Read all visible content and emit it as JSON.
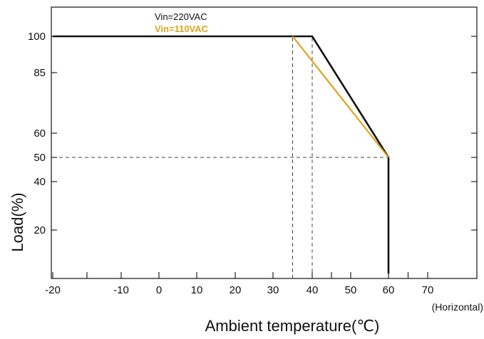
{
  "chart_data": {
    "type": "line",
    "title": "",
    "xlabel": "Ambient temperature(℃)",
    "ylabel": "Load(%)",
    "x_note": "(Horizontal)",
    "xlim": [
      -20,
      80
    ],
    "ylim": [
      0,
      110
    ],
    "x_ticks": [
      -20,
      -10,
      0,
      10,
      20,
      30,
      40,
      50,
      60,
      70
    ],
    "y_ticks": [
      20,
      40,
      50,
      60,
      85,
      100
    ],
    "grid": false,
    "series": [
      {
        "name": "Vin=220VAC",
        "color": "#111111",
        "points": [
          [
            -20,
            100
          ],
          [
            40,
            100
          ],
          [
            60,
            50
          ],
          [
            60,
            2
          ]
        ]
      },
      {
        "name": "Vin=110VAC",
        "color": "#e0a21a",
        "points": [
          [
            35,
            100
          ],
          [
            60,
            50
          ]
        ]
      }
    ],
    "reference_lines": [
      {
        "type": "vertical",
        "x": 35,
        "y_range": [
          0,
          100
        ],
        "style": "dashed"
      },
      {
        "type": "vertical",
        "x": 40,
        "y_range": [
          0,
          100
        ],
        "style": "dashed"
      },
      {
        "type": "horizontal",
        "y": 50,
        "x_range": [
          -20,
          60
        ],
        "style": "dashed"
      }
    ]
  }
}
